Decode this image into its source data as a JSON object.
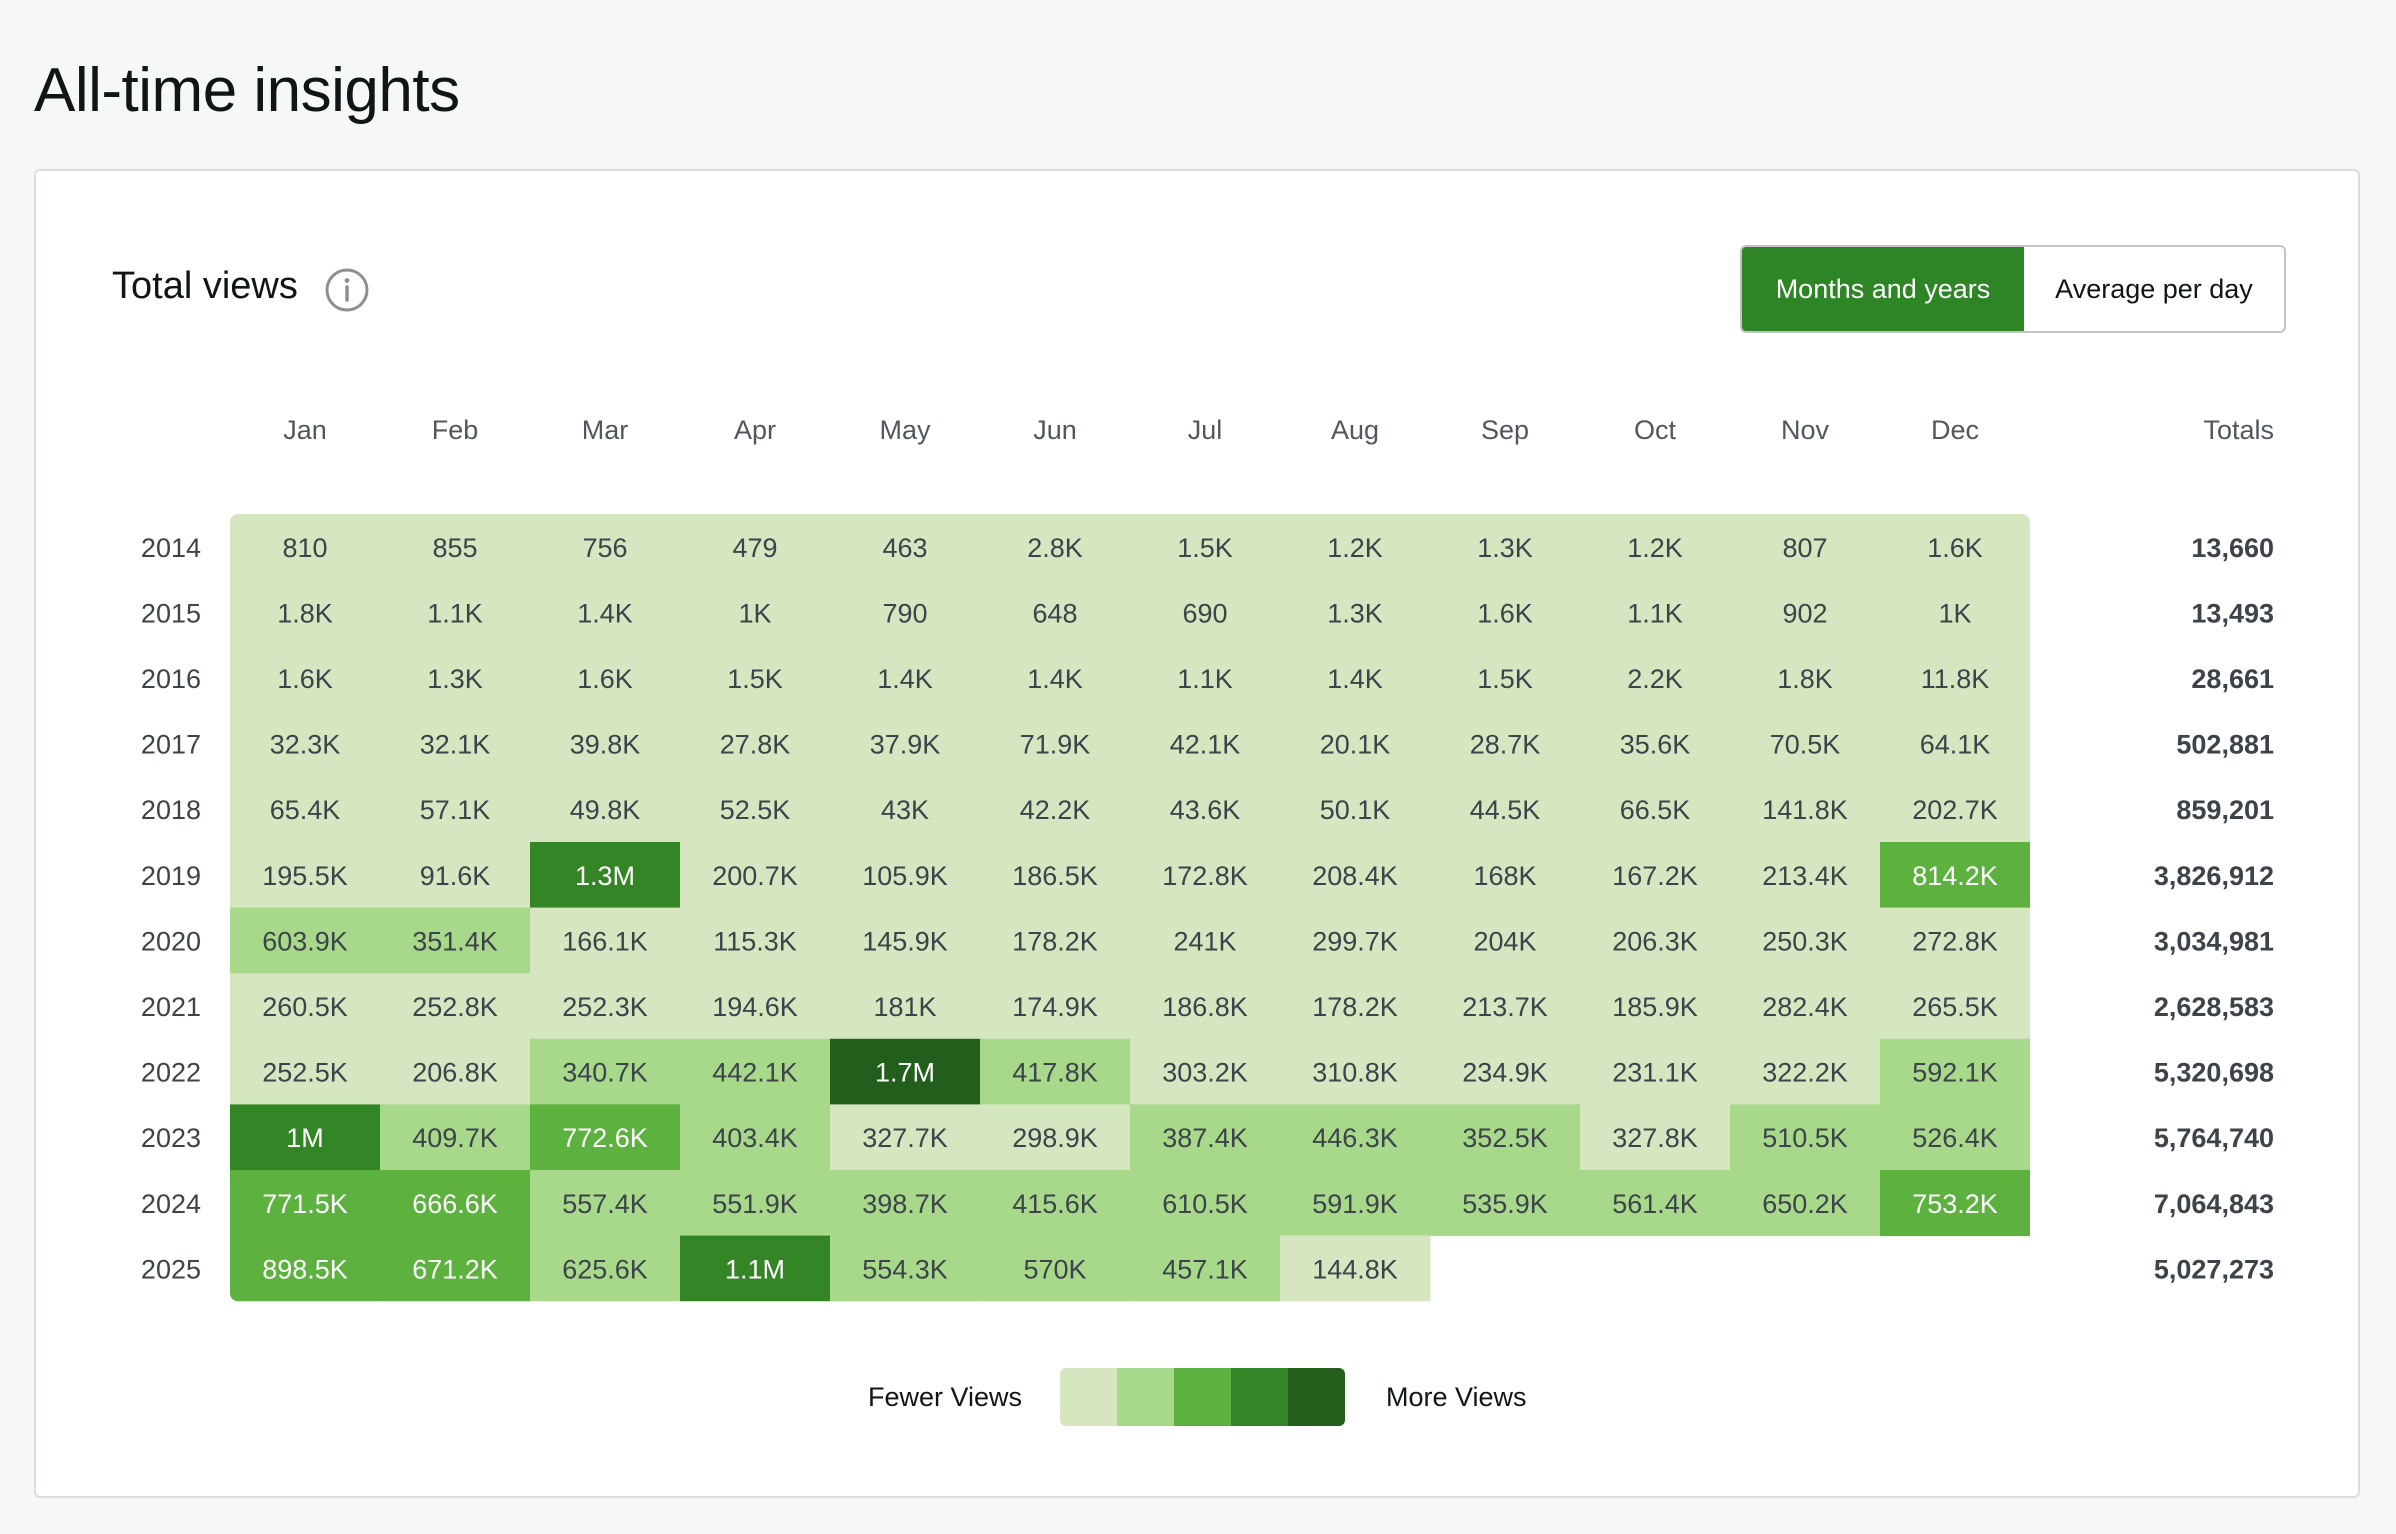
{
  "page": {
    "title": "All-time insights"
  },
  "card": {
    "title": "Total views",
    "info_icon": "info-circle-icon",
    "toggle": {
      "options": [
        "Months and years",
        "Average per day"
      ],
      "selected": "Months and years"
    }
  },
  "colors": {
    "scale": [
      "#d6e6c0",
      "#a8d98b",
      "#5cb13f",
      "#348526",
      "#235e1c"
    ],
    "text_light": "#ffffff",
    "text_dark": "#3c434a",
    "accent": "#2e8526"
  },
  "legend": {
    "low_label": "Fewer Views",
    "high_label": "More Views"
  },
  "chart_data": {
    "type": "heatmap",
    "title": "Total views",
    "columns": [
      "Jan",
      "Feb",
      "Mar",
      "Apr",
      "May",
      "Jun",
      "Jul",
      "Aug",
      "Sep",
      "Oct",
      "Nov",
      "Dec"
    ],
    "totals_header": "Totals",
    "rows": [
      {
        "year": "2014",
        "cells": [
          "810",
          "855",
          "756",
          "479",
          "463",
          "2.8K",
          "1.5K",
          "1.2K",
          "1.3K",
          "1.2K",
          "807",
          "1.6K"
        ],
        "levels": [
          0,
          0,
          0,
          0,
          0,
          0,
          0,
          0,
          0,
          0,
          0,
          0
        ],
        "total": "13,660"
      },
      {
        "year": "2015",
        "cells": [
          "1.8K",
          "1.1K",
          "1.4K",
          "1K",
          "790",
          "648",
          "690",
          "1.3K",
          "1.6K",
          "1.1K",
          "902",
          "1K"
        ],
        "levels": [
          0,
          0,
          0,
          0,
          0,
          0,
          0,
          0,
          0,
          0,
          0,
          0
        ],
        "total": "13,493"
      },
      {
        "year": "2016",
        "cells": [
          "1.6K",
          "1.3K",
          "1.6K",
          "1.5K",
          "1.4K",
          "1.4K",
          "1.1K",
          "1.4K",
          "1.5K",
          "2.2K",
          "1.8K",
          "11.8K"
        ],
        "levels": [
          0,
          0,
          0,
          0,
          0,
          0,
          0,
          0,
          0,
          0,
          0,
          0
        ],
        "total": "28,661"
      },
      {
        "year": "2017",
        "cells": [
          "32.3K",
          "32.1K",
          "39.8K",
          "27.8K",
          "37.9K",
          "71.9K",
          "42.1K",
          "20.1K",
          "28.7K",
          "35.6K",
          "70.5K",
          "64.1K"
        ],
        "levels": [
          0,
          0,
          0,
          0,
          0,
          0,
          0,
          0,
          0,
          0,
          0,
          0
        ],
        "total": "502,881"
      },
      {
        "year": "2018",
        "cells": [
          "65.4K",
          "57.1K",
          "49.8K",
          "52.5K",
          "43K",
          "42.2K",
          "43.6K",
          "50.1K",
          "44.5K",
          "66.5K",
          "141.8K",
          "202.7K"
        ],
        "levels": [
          0,
          0,
          0,
          0,
          0,
          0,
          0,
          0,
          0,
          0,
          0,
          0
        ],
        "total": "859,201"
      },
      {
        "year": "2019",
        "cells": [
          "195.5K",
          "91.6K",
          "1.3M",
          "200.7K",
          "105.9K",
          "186.5K",
          "172.8K",
          "208.4K",
          "168K",
          "167.2K",
          "213.4K",
          "814.2K"
        ],
        "levels": [
          0,
          0,
          3,
          0,
          0,
          0,
          0,
          0,
          0,
          0,
          0,
          2
        ],
        "total": "3,826,912"
      },
      {
        "year": "2020",
        "cells": [
          "603.9K",
          "351.4K",
          "166.1K",
          "115.3K",
          "145.9K",
          "178.2K",
          "241K",
          "299.7K",
          "204K",
          "206.3K",
          "250.3K",
          "272.8K"
        ],
        "levels": [
          1,
          1,
          0,
          0,
          0,
          0,
          0,
          0,
          0,
          0,
          0,
          0
        ],
        "total": "3,034,981"
      },
      {
        "year": "2021",
        "cells": [
          "260.5K",
          "252.8K",
          "252.3K",
          "194.6K",
          "181K",
          "174.9K",
          "186.8K",
          "178.2K",
          "213.7K",
          "185.9K",
          "282.4K",
          "265.5K"
        ],
        "levels": [
          0,
          0,
          0,
          0,
          0,
          0,
          0,
          0,
          0,
          0,
          0,
          0
        ],
        "total": "2,628,583"
      },
      {
        "year": "2022",
        "cells": [
          "252.5K",
          "206.8K",
          "340.7K",
          "442.1K",
          "1.7M",
          "417.8K",
          "303.2K",
          "310.8K",
          "234.9K",
          "231.1K",
          "322.2K",
          "592.1K"
        ],
        "levels": [
          0,
          0,
          1,
          1,
          4,
          1,
          0,
          0,
          0,
          0,
          0,
          1
        ],
        "total": "5,320,698"
      },
      {
        "year": "2023",
        "cells": [
          "1M",
          "409.7K",
          "772.6K",
          "403.4K",
          "327.7K",
          "298.9K",
          "387.4K",
          "446.3K",
          "352.5K",
          "327.8K",
          "510.5K",
          "526.4K"
        ],
        "levels": [
          3,
          1,
          2,
          1,
          0,
          0,
          1,
          1,
          1,
          0,
          1,
          1
        ],
        "total": "5,764,740"
      },
      {
        "year": "2024",
        "cells": [
          "771.5K",
          "666.6K",
          "557.4K",
          "551.9K",
          "398.7K",
          "415.6K",
          "610.5K",
          "591.9K",
          "535.9K",
          "561.4K",
          "650.2K",
          "753.2K"
        ],
        "levels": [
          2,
          2,
          1,
          1,
          1,
          1,
          1,
          1,
          1,
          1,
          1,
          2
        ],
        "total": "7,064,843"
      },
      {
        "year": "2025",
        "cells": [
          "898.5K",
          "671.2K",
          "625.6K",
          "1.1M",
          "554.3K",
          "570K",
          "457.1K",
          "144.8K",
          "",
          "",
          "",
          ""
        ],
        "levels": [
          2,
          2,
          1,
          3,
          1,
          1,
          1,
          0,
          null,
          null,
          null,
          null
        ],
        "total": "5,027,273"
      }
    ]
  }
}
